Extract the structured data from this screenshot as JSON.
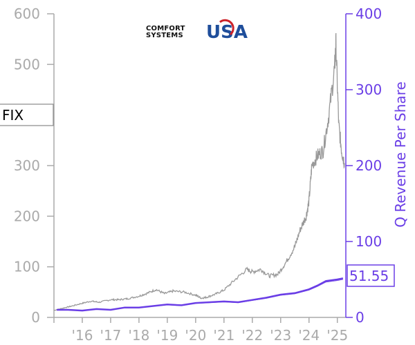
{
  "logo": {
    "line1": "COMFORT",
    "line2": "SYSTEMS",
    "usa": "USA"
  },
  "ticker": "FIX",
  "last_value_label": "51.55",
  "colors": {
    "price": "#999999",
    "revenue": "#6a3ee6",
    "left_axis": "#aaaaaa",
    "right_axis": "#6a3ee6",
    "logo_red": "#cc2229",
    "logo_blue": "#1f4e9b"
  },
  "chart_data": {
    "type": "line",
    "x_tick_labels": [
      "'16",
      "'17",
      "'18",
      "'19",
      "'20",
      "'21",
      "'22",
      "'23",
      "'24",
      "'25"
    ],
    "left_axis": {
      "ticks": [
        0,
        100,
        200,
        300,
        400,
        500,
        600
      ],
      "ylim": [
        0,
        600
      ]
    },
    "right_axis": {
      "label": "Q Revenue Per Share",
      "ticks": [
        0,
        100,
        200,
        300,
        400
      ],
      "ylim": [
        0,
        400
      ]
    },
    "xlim": [
      2015.0,
      2025.3
    ],
    "series": [
      {
        "axis": "left",
        "x": [
          2015.0,
          2015.3,
          2015.6,
          2016.0,
          2016.3,
          2016.6,
          2017.0,
          2017.3,
          2017.6,
          2018.0,
          2018.3,
          2018.6,
          2018.9,
          2019.2,
          2019.6,
          2020.0,
          2020.2,
          2020.4,
          2020.7,
          2021.0,
          2021.4,
          2021.8,
          2022.0,
          2022.3,
          2022.6,
          2022.9,
          2023.2,
          2023.5,
          2023.7,
          2023.9,
          2024.0,
          2024.1,
          2024.3,
          2024.5,
          2024.7,
          2024.9,
          2024.95,
          2025.05,
          2025.15,
          2025.25
        ],
        "y": [
          14,
          18,
          22,
          28,
          32,
          30,
          35,
          35,
          37,
          42,
          48,
          55,
          47,
          52,
          50,
          44,
          38,
          40,
          46,
          54,
          75,
          95,
          90,
          95,
          82,
          85,
          110,
          140,
          175,
          200,
          230,
          300,
          320,
          330,
          400,
          490,
          540,
          380,
          330,
          305
        ]
      },
      {
        "axis": "right",
        "x": [
          2015.1,
          2015.5,
          2016.0,
          2016.5,
          2017.0,
          2017.5,
          2018.0,
          2018.5,
          2019.0,
          2019.5,
          2020.0,
          2020.5,
          2021.0,
          2021.5,
          2022.0,
          2022.5,
          2023.0,
          2023.5,
          2024.0,
          2024.3,
          2024.6,
          2025.0,
          2025.2
        ],
        "y": [
          10,
          10,
          9,
          11,
          10,
          13,
          13,
          15,
          17,
          16,
          19,
          20,
          21,
          20,
          23,
          26,
          30,
          32,
          37,
          42,
          48,
          50,
          51.55
        ]
      }
    ]
  }
}
